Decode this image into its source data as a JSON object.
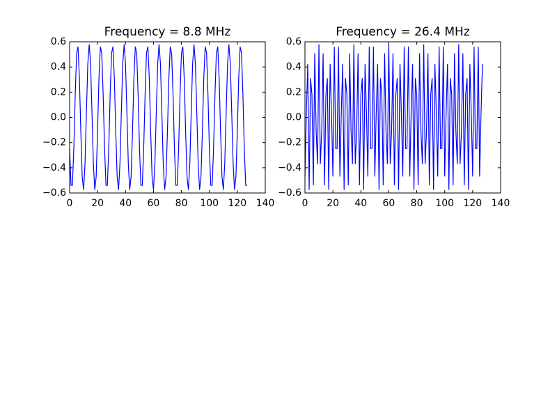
{
  "chart_data": [
    {
      "type": "line",
      "title": "Frequency = 8.8 MHz",
      "x": [
        0,
        1,
        2,
        3,
        4,
        5,
        6,
        7,
        8,
        9,
        10,
        11,
        12,
        13,
        14,
        15,
        16,
        17,
        18,
        19,
        20,
        21,
        22,
        23,
        24,
        25,
        26,
        27,
        28,
        29,
        30,
        31,
        32,
        33,
        34,
        35,
        36,
        37,
        38,
        39,
        40,
        41,
        42,
        43,
        44,
        45,
        46,
        47,
        48,
        49,
        50,
        51,
        52,
        53,
        54,
        55,
        56,
        57,
        58,
        59,
        60,
        61,
        62,
        63,
        64,
        65,
        66,
        67,
        68,
        69,
        70,
        71,
        72,
        73,
        74,
        75,
        76,
        77,
        78,
        79,
        80,
        81,
        82,
        83,
        84,
        85,
        86,
        87,
        88,
        89,
        90,
        91,
        92,
        93,
        94,
        95,
        96,
        97,
        98,
        99,
        100,
        101,
        102,
        103,
        104,
        105,
        106,
        107,
        108,
        109,
        110,
        111,
        112,
        113,
        114,
        115,
        116,
        117,
        118,
        119,
        120,
        121,
        122,
        123,
        124,
        125,
        126,
        127
      ],
      "series": [
        {
          "color": "#0000ff",
          "values": [
            -0.247,
            -0.539,
            -0.539,
            -0.247,
            0.179,
            0.508,
            0.562,
            0.311,
            -0.109,
            -0.469,
            -0.575,
            -0.37,
            0.036,
            0.423,
            0.58,
            0.423,
            0.036,
            -0.37,
            -0.575,
            -0.469,
            -0.109,
            0.311,
            0.562,
            0.508,
            0.179,
            -0.247,
            -0.539,
            -0.539,
            -0.247,
            0.179,
            0.508,
            0.562,
            0.311,
            -0.109,
            -0.469,
            -0.575,
            -0.37,
            0.036,
            0.423,
            0.58,
            0.423,
            0.036,
            -0.37,
            -0.575,
            -0.469,
            -0.109,
            0.311,
            0.562,
            0.508,
            0.179,
            -0.247,
            -0.539,
            -0.539,
            -0.247,
            0.179,
            0.508,
            0.562,
            0.311,
            -0.109,
            -0.469,
            -0.575,
            -0.37,
            0.036,
            0.423,
            0.58,
            0.423,
            0.036,
            -0.37,
            -0.575,
            -0.469,
            -0.109,
            0.311,
            0.562,
            0.508,
            0.179,
            -0.247,
            -0.539,
            -0.539,
            -0.247,
            0.179,
            0.508,
            0.562,
            0.311,
            -0.109,
            -0.469,
            -0.575,
            -0.37,
            0.036,
            0.423,
            0.58,
            0.423,
            0.036,
            -0.37,
            -0.575,
            -0.469,
            -0.109,
            0.311,
            0.562,
            0.508,
            0.179,
            -0.247,
            -0.539,
            -0.539,
            -0.247,
            0.179,
            0.508,
            0.562,
            0.311,
            -0.109,
            -0.469,
            -0.575,
            -0.37,
            0.036,
            0.423,
            0.58,
            0.423,
            0.036,
            -0.37,
            -0.575,
            -0.469,
            -0.109,
            0.311,
            0.562,
            0.508,
            0.179,
            -0.247,
            -0.539,
            -0.539
          ]
        }
      ],
      "xlim": [
        0,
        140
      ],
      "xticks": [
        0,
        20,
        40,
        60,
        80,
        100,
        120,
        140
      ],
      "ylim": [
        -0.6,
        0.6
      ],
      "yticks": [
        {
          "value": -0.6,
          "label": "−0.6"
        },
        {
          "value": -0.4,
          "label": "−0.4"
        },
        {
          "value": -0.2,
          "label": "−0.2"
        },
        {
          "value": 0,
          "label": "0.0"
        },
        0.2,
        0.4,
        0.6
      ],
      "grid": false
    },
    {
      "type": "line",
      "title": "Frequency = 26.4 MHz",
      "x": [
        0,
        1,
        2,
        3,
        4,
        5,
        6,
        7,
        8,
        9,
        10,
        11,
        12,
        13,
        14,
        15,
        16,
        17,
        18,
        19,
        20,
        21,
        22,
        23,
        24,
        25,
        26,
        27,
        28,
        29,
        30,
        31,
        32,
        33,
        34,
        35,
        36,
        37,
        38,
        39,
        40,
        41,
        42,
        43,
        44,
        45,
        46,
        47,
        48,
        49,
        50,
        51,
        52,
        53,
        54,
        55,
        56,
        57,
        58,
        59,
        60,
        61,
        62,
        63,
        64,
        65,
        66,
        67,
        68,
        69,
        70,
        71,
        72,
        73,
        74,
        75,
        76,
        77,
        78,
        79,
        80,
        81,
        82,
        83,
        84,
        85,
        86,
        87,
        88,
        89,
        90,
        91,
        92,
        93,
        94,
        95,
        96,
        97,
        98,
        99,
        100,
        101,
        102,
        103,
        104,
        105,
        106,
        107,
        108,
        109,
        110,
        111,
        112,
        113,
        114,
        115,
        116,
        117,
        118,
        119,
        120,
        121,
        122,
        123,
        124,
        125,
        126,
        127
      ],
      "series": [
        {
          "color": "#0000ff",
          "values": [
            -0.469,
            0.036,
            0.423,
            -0.575,
            0.311,
            0.179,
            -0.539,
            0.508,
            -0.109,
            -0.37,
            0.58,
            -0.37,
            -0.109,
            0.508,
            -0.539,
            0.179,
            0.311,
            -0.575,
            0.423,
            0.036,
            -0.469,
            0.562,
            -0.247,
            -0.247,
            0.562,
            -0.469,
            0.036,
            0.423,
            -0.575,
            0.311,
            0.179,
            -0.539,
            0.508,
            -0.109,
            -0.37,
            0.58,
            -0.37,
            -0.109,
            0.508,
            -0.539,
            0.179,
            0.311,
            -0.575,
            0.423,
            0.036,
            -0.469,
            0.562,
            -0.247,
            -0.247,
            0.562,
            -0.469,
            0.036,
            0.423,
            -0.575,
            0.311,
            0.179,
            -0.539,
            0.508,
            -0.109,
            -0.37,
            0.58,
            -0.37,
            -0.109,
            0.508,
            -0.539,
            0.179,
            0.311,
            -0.575,
            0.423,
            0.036,
            -0.469,
            0.562,
            -0.247,
            -0.247,
            0.562,
            -0.469,
            0.036,
            0.423,
            -0.575,
            0.311,
            0.179,
            -0.539,
            0.508,
            -0.109,
            -0.37,
            0.58,
            -0.37,
            -0.109,
            0.508,
            -0.539,
            0.179,
            0.311,
            -0.575,
            0.423,
            0.036,
            -0.469,
            0.562,
            -0.247,
            -0.247,
            0.562,
            -0.469,
            0.036,
            0.423,
            -0.575,
            0.311,
            0.179,
            -0.539,
            0.508,
            -0.109,
            -0.37,
            0.58,
            -0.37,
            -0.109,
            0.508,
            -0.539,
            0.179,
            0.311,
            -0.575,
            0.423,
            0.036,
            -0.469,
            0.562,
            -0.247,
            -0.247,
            0.562,
            -0.469,
            0.036,
            0.423
          ]
        }
      ],
      "xlim": [
        0,
        140
      ],
      "xticks": [
        0,
        20,
        40,
        60,
        80,
        100,
        120,
        140
      ],
      "ylim": [
        -0.6,
        0.6
      ],
      "yticks": [
        {
          "value": -0.6,
          "label": "−0.6"
        },
        {
          "value": -0.4,
          "label": "−0.4"
        },
        {
          "value": -0.2,
          "label": "−0.2"
        },
        {
          "value": 0,
          "label": "0.0"
        },
        0.2,
        0.4,
        0.6
      ],
      "grid": false
    }
  ]
}
